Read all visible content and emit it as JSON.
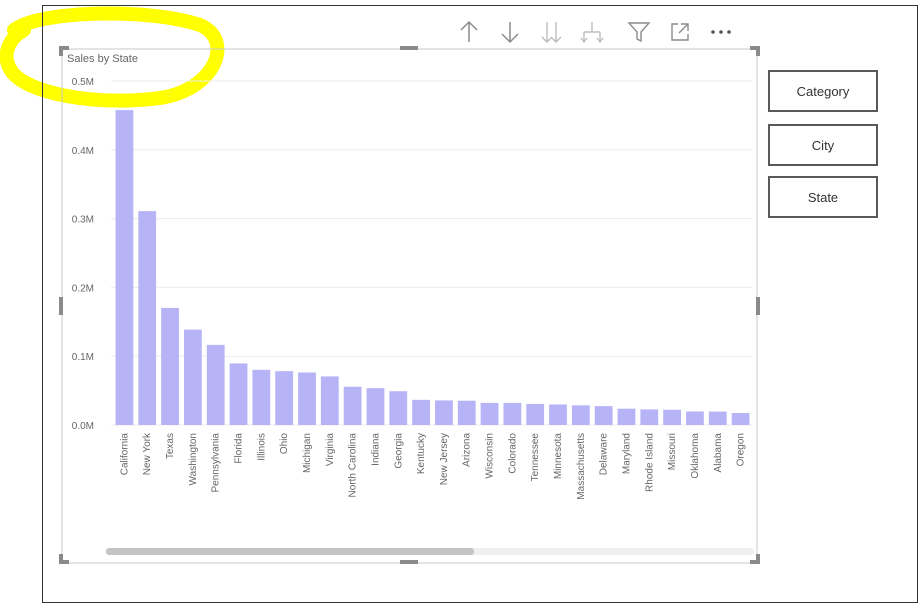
{
  "visual": {
    "field_buttons": [
      "Category",
      "City",
      "State"
    ],
    "toolbar_icons": [
      "arrow-up-icon",
      "arrow-down-icon",
      "double-arrow-down-icon",
      "expand-hierarchy-icon",
      "filter-icon",
      "focus-mode-icon",
      "more-options-icon"
    ]
  },
  "colors": {
    "bar": "#b7b3f7",
    "highlight": "#ffff00",
    "gridline": "#ececec",
    "axis_text": "#666666"
  },
  "chart_data": {
    "type": "bar",
    "title": "Sales by State",
    "xlabel": "",
    "ylabel": "",
    "ylim": [
      0,
      500000
    ],
    "yticks": [
      0,
      100000,
      200000,
      300000,
      400000,
      500000
    ],
    "ytick_labels": [
      "0.0M",
      "0.1M",
      "0.2M",
      "0.3M",
      "0.4M",
      "0.5M"
    ],
    "categories": [
      "California",
      "New York",
      "Texas",
      "Washington",
      "Pennsylvania",
      "Florida",
      "Illinois",
      "Ohio",
      "Michigan",
      "Virginia",
      "North Carolina",
      "Indiana",
      "Georgia",
      "Kentucky",
      "New Jersey",
      "Arizona",
      "Wisconsin",
      "Colorado",
      "Tennessee",
      "Minnesota",
      "Massachusetts",
      "Delaware",
      "Maryland",
      "Rhode Island",
      "Missouri",
      "Oklahoma",
      "Alabama",
      "Oregon"
    ],
    "values": [
      457688,
      310876,
      170188,
      138641,
      116512,
      89474,
      80166,
      78258,
      76270,
      70637,
      55603,
      53555,
      49096,
      36592,
      35764,
      35282,
      32115,
      32108,
      30662,
      29863,
      28634,
      27451,
      23706,
      22628,
      22205,
      19683,
      19511,
      17431
    ],
    "grid": true,
    "legend": "none"
  }
}
